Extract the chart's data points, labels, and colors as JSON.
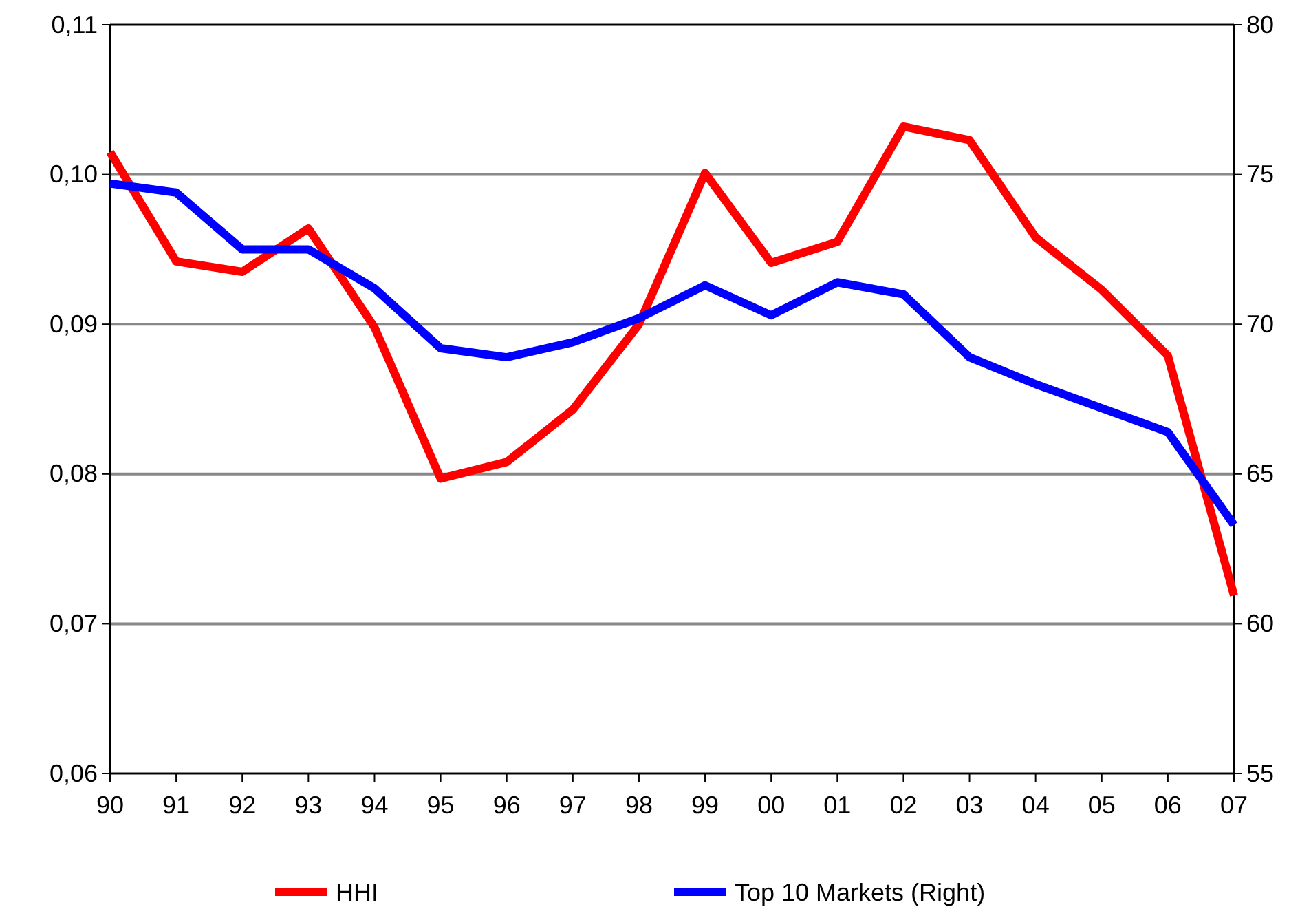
{
  "chart_data": {
    "type": "line",
    "categories": [
      "90",
      "91",
      "92",
      "93",
      "94",
      "95",
      "96",
      "97",
      "98",
      "99",
      "00",
      "01",
      "02",
      "03",
      "04",
      "05",
      "06",
      "07"
    ],
    "series": [
      {
        "name": "HHI",
        "color": "#ff0000",
        "values": [
          0.1015,
          0.0942,
          0.0935,
          0.0964,
          0.0898,
          0.0797,
          0.0808,
          0.0843,
          0.09,
          0.1001,
          0.0941,
          0.0955,
          0.1032,
          0.1023,
          0.0958,
          0.0923,
          0.0879,
          0.0719
        ]
      },
      {
        "name": "Top 10 Markets (Right)",
        "color": "#0000ff",
        "axis": "y2",
        "values": [
          74.7,
          74.4,
          72.5,
          72.5,
          71.2,
          69.2,
          68.9,
          69.4,
          70.2,
          71.3,
          70.3,
          71.4,
          71.0,
          68.9,
          68.0,
          67.2,
          66.4,
          63.3
        ]
      }
    ],
    "ylim": [
      0.06,
      0.11
    ],
    "yticks": [
      {
        "value": 0.06,
        "label": "0,06"
      },
      {
        "value": 0.07,
        "label": "0,07"
      },
      {
        "value": 0.08,
        "label": "0,08"
      },
      {
        "value": 0.09,
        "label": "0,09"
      },
      {
        "value": 0.1,
        "label": "0,10"
      },
      {
        "value": 0.11,
        "label": "0,11"
      }
    ],
    "y2lim": [
      55,
      80
    ],
    "y2ticks": [
      55,
      60,
      65,
      70,
      75,
      80
    ],
    "grid": "y",
    "legend": "bottom",
    "marker": "none",
    "line_style": "solid"
  }
}
